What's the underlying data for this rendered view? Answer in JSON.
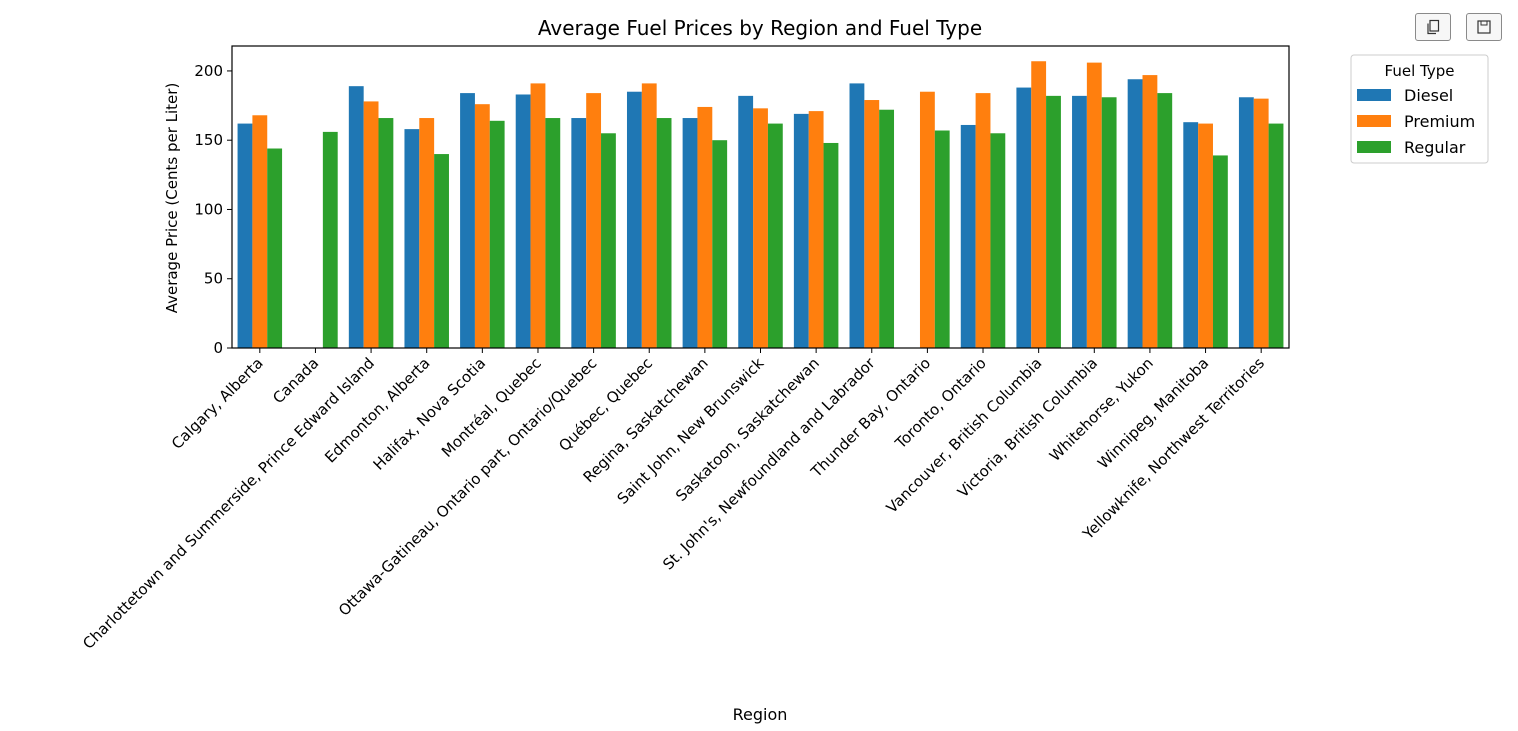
{
  "toolbar": {
    "buttons": [
      {
        "icon": "copy-icon"
      },
      {
        "icon": "save-icon"
      }
    ]
  },
  "colors": {
    "Diesel": "#1f77b4",
    "Premium": "#ff7f0e",
    "Regular": "#2ca02c"
  },
  "chart_data": {
    "type": "bar",
    "title": "Average Fuel Prices by Region and Fuel Type",
    "xlabel": "Region",
    "ylabel": "Average Price (Cents per Liter)",
    "ylim": [
      0,
      218
    ],
    "yticks": [
      0,
      50,
      100,
      150,
      200
    ],
    "grid": false,
    "legend": {
      "title": "Fuel Type",
      "placement": "outside upper right"
    },
    "categories": [
      "Calgary, Alberta",
      "Canada",
      "Charlottetown and Summerside, Prince Edward Island",
      "Edmonton, Alberta",
      "Halifax, Nova Scotia",
      "Montréal, Quebec",
      "Ottawa-Gatineau, Ontario part, Ontario/Quebec",
      "Québec, Quebec",
      "Regina, Saskatchewan",
      "Saint John, New Brunswick",
      "Saskatoon, Saskatchewan",
      "St. John's, Newfoundland and Labrador",
      "Thunder Bay, Ontario",
      "Toronto, Ontario",
      "Vancouver, British Columbia",
      "Victoria, British Columbia",
      "Whitehorse, Yukon",
      "Winnipeg, Manitoba",
      "Yellowknife, Northwest Territories"
    ],
    "series": [
      {
        "name": "Diesel",
        "values": [
          162,
          null,
          189,
          158,
          184,
          183,
          166,
          185,
          166,
          182,
          169,
          191,
          null,
          161,
          188,
          182,
          194,
          163,
          181
        ]
      },
      {
        "name": "Premium",
        "values": [
          168,
          null,
          178,
          166,
          176,
          191,
          184,
          191,
          174,
          173,
          171,
          179,
          185,
          184,
          207,
          206,
          197,
          162,
          180
        ]
      },
      {
        "name": "Regular",
        "values": [
          144,
          156,
          166,
          140,
          164,
          166,
          155,
          166,
          150,
          162,
          148,
          172,
          157,
          155,
          182,
          181,
          184,
          139,
          162
        ]
      }
    ]
  }
}
